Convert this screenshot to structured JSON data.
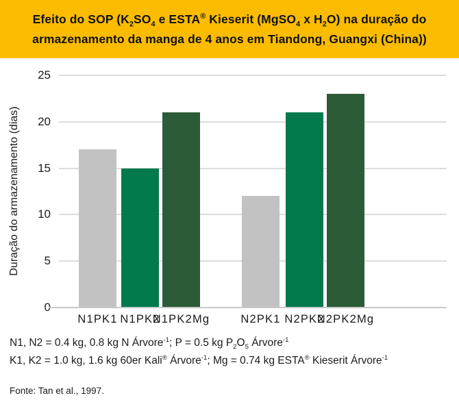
{
  "banner": {
    "title_line1_html": "Efeito do SOP (K<sub>2</sub>SO<sub>4</sub> e ESTA<sup>®</sup> Kieserit (MgSO<sub>4</sub> x H<sub>2</sub>O) na duração do",
    "title_line2_html": "armazenamento da manga de 4 anos em Tiandong, Guangxi (China))",
    "background": "#FBBC00",
    "text_color": "#121212"
  },
  "chart_data": {
    "type": "bar",
    "title": "Efeito do SOP (K2SO4 e ESTA® Kieserit (MgSO4 x H2O) na duração do armazenamento da manga de 4 anos em Tiandong, Guangxi (China))",
    "xlabel": "",
    "ylabel": "Duração do armazenamento (dias)",
    "ylim": [
      0,
      25
    ],
    "yticks": [
      0,
      5,
      10,
      15,
      20,
      25
    ],
    "grid": true,
    "legend": "none",
    "categories": [
      "N1PK1",
      "N1PK2",
      "N1PK2Mg",
      "N2PK1",
      "N2PK2",
      "N2PK2Mg"
    ],
    "values": [
      17,
      15,
      21,
      12,
      21,
      23
    ],
    "bar_colors": [
      "#C2C2C2",
      "#037A4C",
      "#2C5B37",
      "#C2C2C2",
      "#037A4C",
      "#2C5B37"
    ],
    "groups": [
      [
        "N1PK1",
        "N1PK2",
        "N1PK2Mg"
      ],
      [
        "N2PK1",
        "N2PK2",
        "N2PK2Mg"
      ]
    ]
  },
  "footnotes": {
    "line1_html": "N1, N2 = 0.4 kg, 0.8 kg N Árvore<sup>-1</sup>; P = 0.5 kg P<sub>2</sub>O<sub>5</sub> Árvore<sup>-1</sup>",
    "line2_html": "K1, K2 = 1.0 kg, 1.6 kg 60er Kali<sup>®</sup> Árvore<sup>-1</sup>; Mg = 0.74 kg ESTA<sup>®</sup> Kieserit Árvore<sup>-1</sup>",
    "source": "Fonte: Tan et al., 1997."
  }
}
